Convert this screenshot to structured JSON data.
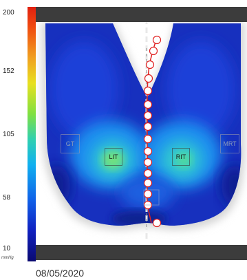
{
  "scale": {
    "ticks": [
      "200",
      "152",
      "105",
      "58",
      "10"
    ],
    "unit": "mmHg",
    "colors": {
      "high": "#e02010",
      "mid": "#e8e020",
      "low": "#0a0a70"
    }
  },
  "map": {
    "regions": {
      "gt": "GT",
      "lit": "LIT",
      "rit": "RIT",
      "mrt": "MRT"
    }
  },
  "date": "08/05/2020"
}
